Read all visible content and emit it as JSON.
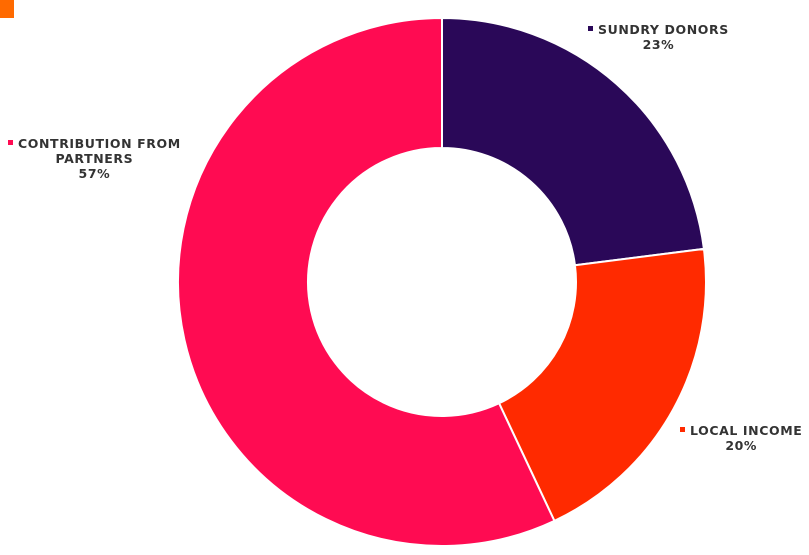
{
  "colors": {
    "corner_mark": "#ff6a00"
  },
  "chart_data": {
    "type": "pie",
    "donut": true,
    "start_angle": "top",
    "direction": "clockwise",
    "slices": [
      {
        "label": "SUNDRY DONORS",
        "percent_text": "23%",
        "value": 23,
        "color": "#2a0858"
      },
      {
        "label": "LOCAL INCOME",
        "percent_text": "20%",
        "value": 20,
        "color": "#ff2a00"
      },
      {
        "label": "CONTRIBUTION FROM PARTNERS",
        "label_line1": "CONTRIBUTION FROM",
        "label_line2": "PARTNERS",
        "percent_text": "57%",
        "value": 57,
        "color": "#ff0b52"
      }
    ]
  }
}
